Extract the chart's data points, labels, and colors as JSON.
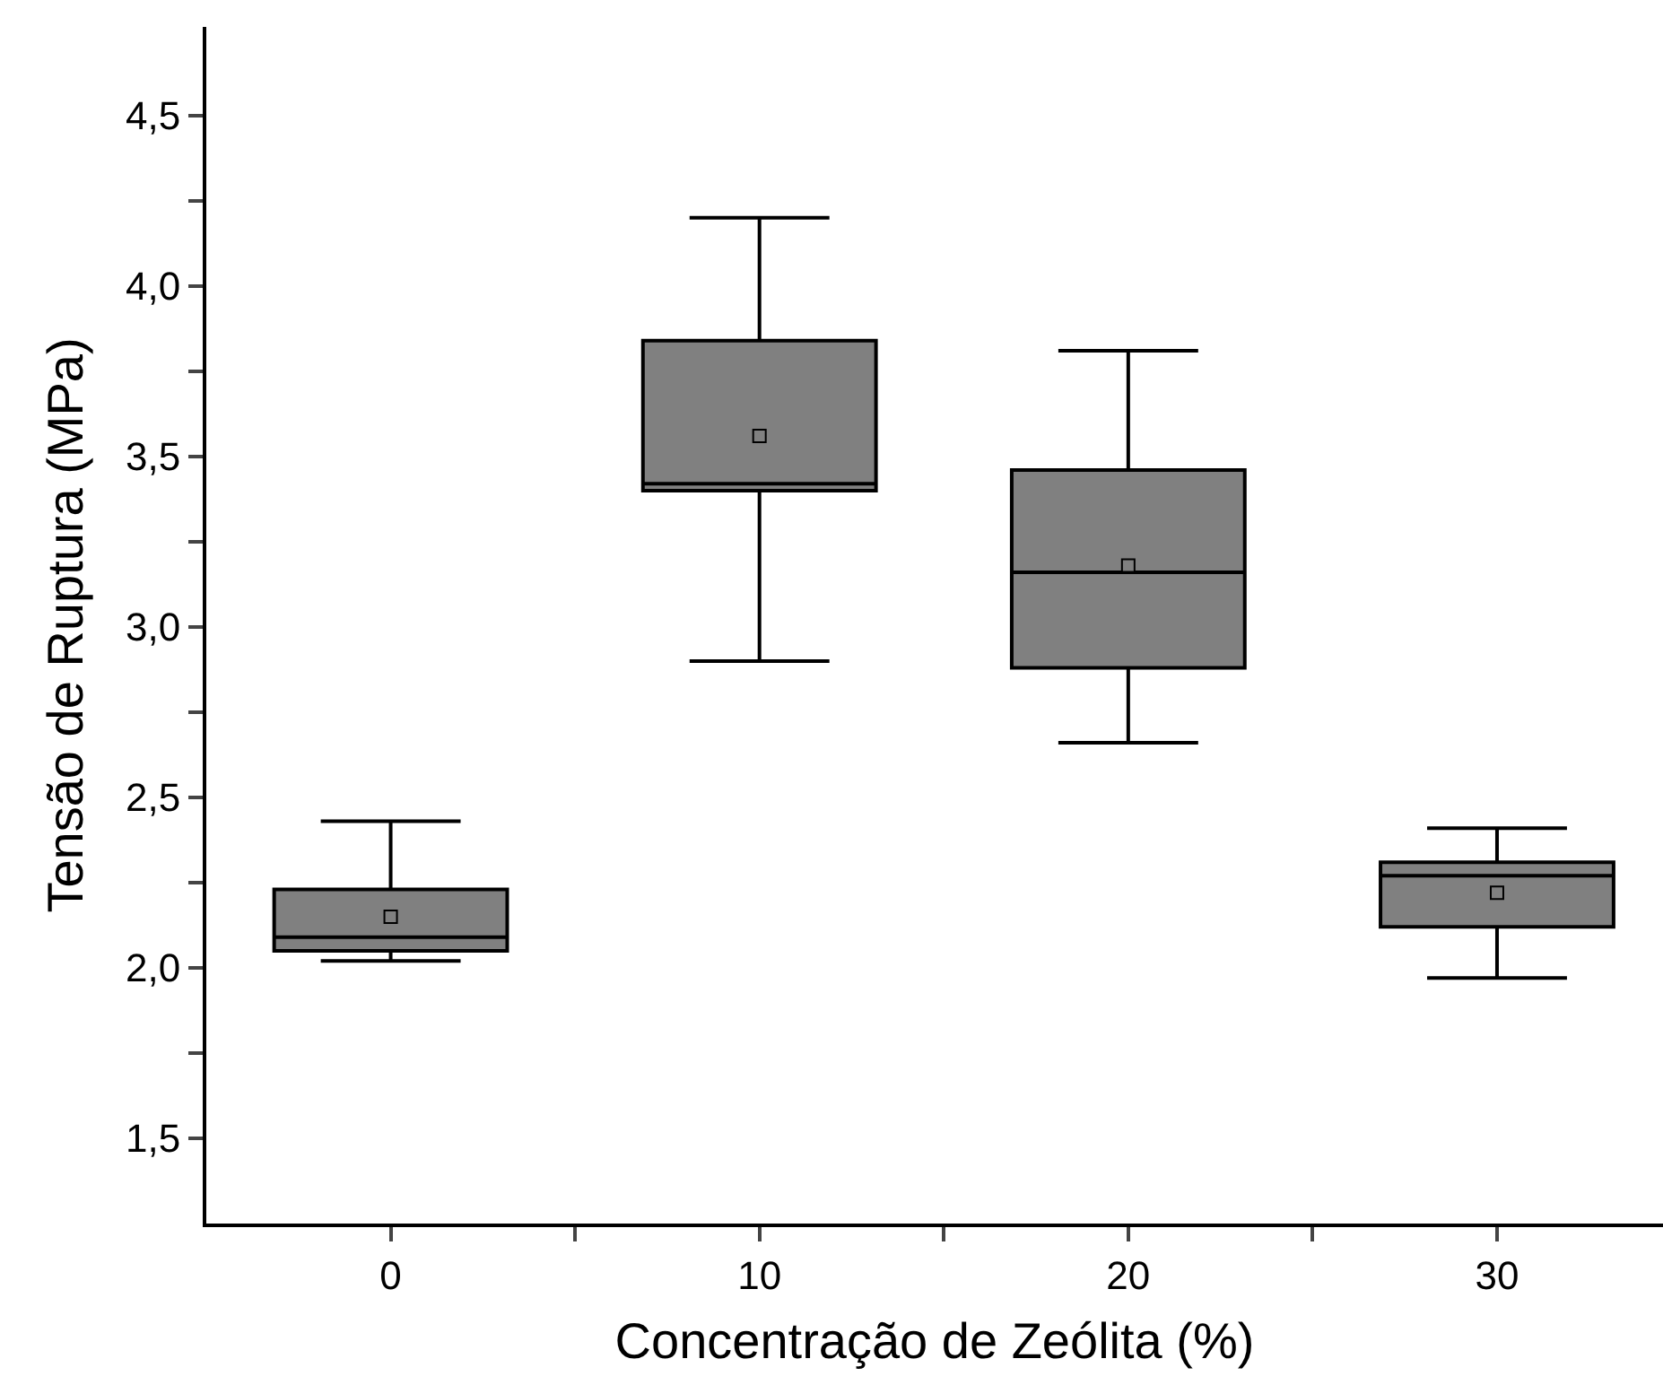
{
  "chart_data": {
    "type": "box",
    "xlabel": "Concentração de Zeólita (%)",
    "ylabel": "Tensão de Ruptura (MPa)",
    "x": [
      0,
      10,
      20,
      30
    ],
    "xlim": [
      -5,
      34.5
    ],
    "xticks": [
      0,
      {
        "value": 5,
        "label": null
      },
      10,
      {
        "value": 15,
        "label": null
      },
      20,
      {
        "value": 25,
        "label": null
      },
      30
    ],
    "ylim": [
      1.25,
      4.76
    ],
    "yticks": [
      {
        "value": 1.5,
        "label": "1,5"
      },
      {
        "value": 1.75,
        "label": null
      },
      {
        "value": 2.0,
        "label": "2,0"
      },
      {
        "value": 2.25,
        "label": null
      },
      {
        "value": 2.5,
        "label": "2,5"
      },
      {
        "value": 2.75,
        "label": null
      },
      {
        "value": 3.0,
        "label": "3,0"
      },
      {
        "value": 3.25,
        "label": null
      },
      {
        "value": 3.5,
        "label": "3,5"
      },
      {
        "value": 3.75,
        "label": null
      },
      {
        "value": 4.0,
        "label": "4,0"
      },
      {
        "value": 4.25,
        "label": null
      },
      {
        "value": 4.5,
        "label": "4,5"
      }
    ],
    "color": "#808080",
    "marker": "square",
    "boxes": [
      {
        "low": 2.02,
        "q1": 2.05,
        "median": 2.09,
        "q3": 2.23,
        "high": 2.43,
        "mean": 2.15
      },
      {
        "low": 2.9,
        "q1": 3.4,
        "median": 3.42,
        "q3": 3.84,
        "high": 4.2,
        "mean": 3.56
      },
      {
        "low": 2.66,
        "q1": 2.88,
        "median": 3.16,
        "q3": 3.46,
        "high": 3.81,
        "mean": 3.18
      },
      {
        "low": 1.97,
        "q1": 2.12,
        "median": 2.27,
        "q3": 2.31,
        "high": 2.41,
        "mean": 2.22
      }
    ]
  }
}
